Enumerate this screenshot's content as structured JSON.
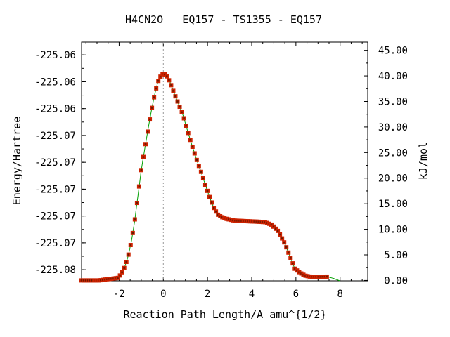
{
  "chart_data": {
    "type": "line",
    "title": "H4CN2O   EQ157 - TS1355 - EQ157",
    "xlabel": "Reaction Path Length/A amu^{1/2}",
    "ylabel": "Energy/Hartree",
    "ylabel_right": "kJ/mol",
    "xlim": [
      -3.7,
      9.25
    ],
    "ylim_right_kjmol": [
      -0.08,
      46.6
    ],
    "x_ticks": [
      -2,
      0,
      2,
      4,
      6,
      8
    ],
    "x_tick_labels": [
      "-2",
      "0",
      "2",
      "4",
      "6",
      "8"
    ],
    "left_tick_values_kjmol": [
      2.1,
      7.35,
      12.6,
      17.85,
      23.1,
      28.35,
      33.6,
      38.85,
      44.1
    ],
    "left_tick_labels": [
      "-225.08",
      "-225.07",
      "-225.07",
      "-225.07",
      "-225.07",
      "-225.07",
      "-225.06",
      "-225.06",
      "-225.06"
    ],
    "right_ticks": [
      0,
      5,
      10,
      15,
      20,
      25,
      30,
      35,
      40,
      45
    ],
    "right_tick_labels": [
      "0.00",
      "5.00",
      "10.00",
      "15.00",
      "20.00",
      "25.00",
      "30.00",
      "35.00",
      "40.00",
      "45.00"
    ],
    "ts_x": 0,
    "colors": {
      "line": "#00a000",
      "points": "#cc2200",
      "point_core": "#6a1a00",
      "ts_line": "#999999"
    },
    "curve": [
      [
        -3.7,
        0.0
      ],
      [
        -2.9,
        0.0
      ],
      [
        -2.6,
        0.2
      ],
      [
        -2.3,
        0.35
      ],
      [
        -2.05,
        0.5
      ],
      [
        -1.9,
        1.3
      ],
      [
        -1.75,
        2.6
      ],
      [
        -1.6,
        4.6
      ],
      [
        -1.45,
        7.5
      ],
      [
        -1.3,
        11.5
      ],
      [
        -1.15,
        16.5
      ],
      [
        -1.0,
        21.5
      ],
      [
        -0.85,
        25.5
      ],
      [
        -0.7,
        29.3
      ],
      [
        -0.55,
        33.0
      ],
      [
        -0.4,
        36.2
      ],
      [
        -0.25,
        38.8
      ],
      [
        -0.1,
        40.1
      ],
      [
        0.0,
        40.5
      ],
      [
        0.15,
        40.0
      ],
      [
        0.3,
        38.8
      ],
      [
        0.5,
        36.5
      ],
      [
        0.7,
        34.4
      ],
      [
        0.9,
        32.2
      ],
      [
        1.1,
        29.2
      ],
      [
        1.3,
        26.4
      ],
      [
        1.5,
        23.7
      ],
      [
        1.7,
        21.3
      ],
      [
        1.9,
        18.7
      ],
      [
        2.1,
        16.2
      ],
      [
        2.3,
        14.0
      ],
      [
        2.5,
        12.7
      ],
      [
        2.8,
        12.1
      ],
      [
        3.2,
        11.7
      ],
      [
        3.7,
        11.6
      ],
      [
        4.2,
        11.5
      ],
      [
        4.6,
        11.4
      ],
      [
        4.9,
        10.9
      ],
      [
        5.2,
        9.6
      ],
      [
        5.5,
        7.2
      ],
      [
        5.75,
        4.5
      ],
      [
        5.95,
        2.3
      ],
      [
        6.15,
        1.6
      ],
      [
        6.4,
        0.95
      ],
      [
        6.7,
        0.7
      ],
      [
        7.1,
        0.7
      ],
      [
        7.4,
        0.75
      ],
      [
        7.7,
        0.4
      ],
      [
        8.0,
        -0.1
      ]
    ],
    "points_x_range": [
      -3.7,
      7.4
    ]
  }
}
